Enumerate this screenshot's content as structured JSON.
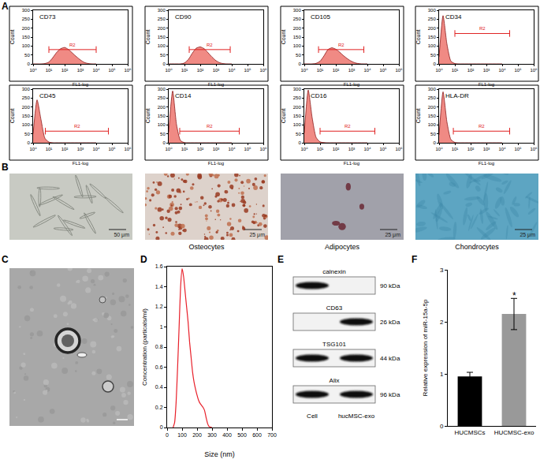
{
  "panel_labels": [
    "A",
    "B",
    "C",
    "D",
    "E",
    "F"
  ],
  "chart_data": [
    {
      "type": "area",
      "title": "CD73",
      "xlabel": "FL1-log",
      "ylabel": "Count",
      "log": "x",
      "color": "#f08a84",
      "x": [
        1,
        1.78,
        3.16,
        5.62,
        10,
        17.8,
        31.6,
        56.2,
        100,
        178,
        316,
        562,
        1000,
        1778,
        3162,
        5623,
        10000
      ],
      "values": [
        0,
        0,
        0,
        2,
        10,
        35,
        65,
        85,
        92,
        80,
        60,
        40,
        22,
        8,
        2,
        0,
        0
      ],
      "xlim": [
        1,
        1000000
      ],
      "xticks": [
        {
          "value": 1,
          "label": "10⁰"
        },
        {
          "value": 10,
          "label": "10¹"
        },
        {
          "value": 100,
          "label": "10²"
        },
        {
          "value": 1000,
          "label": "10³"
        },
        {
          "value": 10000,
          "label": "10⁴"
        },
        {
          "value": 100000,
          "label": "10⁵"
        },
        {
          "value": 1000000,
          "label": "10⁶"
        }
      ],
      "ylim": [
        0,
        300
      ],
      "yticks": [
        0,
        50,
        100,
        150,
        200,
        250,
        300
      ],
      "grid": false,
      "annotations": [
        {
          "text": "R2",
          "x": [
            10,
            10000
          ],
          "y": 80
        }
      ]
    },
    {
      "type": "area",
      "title": "CD90",
      "xlabel": "FL1-log",
      "ylabel": "Count",
      "log": "x",
      "color": "#f08a84",
      "x": [
        1,
        1.78,
        3.16,
        5.62,
        10,
        17.8,
        31.6,
        56.2,
        100,
        178,
        316,
        562,
        1000,
        1778,
        3162,
        5623,
        10000
      ],
      "values": [
        0,
        0,
        0,
        0,
        5,
        25,
        60,
        88,
        95,
        85,
        62,
        38,
        18,
        6,
        1,
        0,
        0
      ],
      "xlim": [
        1,
        1000000
      ],
      "xticks": [
        {
          "value": 1,
          "label": "10⁰"
        },
        {
          "value": 10,
          "label": "10¹"
        },
        {
          "value": 100,
          "label": "10²"
        },
        {
          "value": 1000,
          "label": "10³"
        },
        {
          "value": 10000,
          "label": "10⁴"
        },
        {
          "value": 100000,
          "label": "10⁵"
        },
        {
          "value": 1000000,
          "label": "10⁶"
        }
      ],
      "ylim": [
        0,
        300
      ],
      "yticks": [
        0,
        50,
        100,
        150,
        200,
        250,
        300
      ],
      "grid": false,
      "annotations": [
        {
          "text": "R2",
          "x": [
            20,
            8000
          ],
          "y": 80
        }
      ]
    },
    {
      "type": "area",
      "title": "CD105",
      "xlabel": "FL1-log",
      "ylabel": "Count",
      "log": "x",
      "color": "#f08a84",
      "x": [
        1,
        1.78,
        3.16,
        5.62,
        10,
        17.8,
        31.6,
        56.2,
        100,
        178,
        316,
        562,
        1000,
        1778,
        3162,
        5623,
        10000
      ],
      "values": [
        0,
        0,
        0,
        3,
        15,
        45,
        80,
        90,
        82,
        65,
        45,
        28,
        14,
        5,
        1,
        0,
        0
      ],
      "xlim": [
        1,
        1000000
      ],
      "xticks": [
        {
          "value": 1,
          "label": "10⁰"
        },
        {
          "value": 10,
          "label": "10¹"
        },
        {
          "value": 100,
          "label": "10²"
        },
        {
          "value": 1000,
          "label": "10³"
        },
        {
          "value": 10000,
          "label": "10⁴"
        },
        {
          "value": 100000,
          "label": "10⁵"
        },
        {
          "value": 1000000,
          "label": "10⁶"
        }
      ],
      "ylim": [
        0,
        300
      ],
      "yticks": [
        0,
        50,
        100,
        150,
        200,
        250,
        300
      ],
      "grid": false,
      "annotations": [
        {
          "text": "R2",
          "x": [
            8,
            6000
          ],
          "y": 80
        }
      ]
    },
    {
      "type": "area",
      "title": "CD34",
      "xlabel": "FL1-log",
      "ylabel": "Count",
      "log": "x",
      "color": "#f08a84",
      "x": [
        1,
        1.78,
        3.16,
        5.62,
        10,
        17.8,
        31.6,
        56.2,
        100,
        178,
        316,
        562,
        1000,
        1778,
        3162,
        5623,
        10000
      ],
      "values": [
        40,
        270,
        110,
        15,
        2,
        0,
        0,
        0,
        0,
        0,
        0,
        0,
        0,
        0,
        0,
        0,
        0
      ],
      "xlim": [
        1,
        1000000
      ],
      "xticks": [
        {
          "value": 1,
          "label": "10⁰"
        },
        {
          "value": 10,
          "label": "10¹"
        },
        {
          "value": 100,
          "label": "10²"
        },
        {
          "value": 1000,
          "label": "10³"
        },
        {
          "value": 10000,
          "label": "10⁴"
        },
        {
          "value": 100000,
          "label": "10⁵"
        },
        {
          "value": 1000000,
          "label": "10⁶"
        }
      ],
      "ylim": [
        0,
        300
      ],
      "yticks": [
        0,
        50,
        100,
        150,
        200,
        250,
        300
      ],
      "grid": false,
      "annotations": [
        {
          "text": "R2",
          "x": [
            10,
            30000
          ],
          "y": 170
        }
      ]
    },
    {
      "type": "area",
      "title": "CD45",
      "xlabel": "FL1-log",
      "ylabel": "Count",
      "log": "x",
      "color": "#f08a84",
      "x": [
        1,
        1.78,
        3.16,
        5.62,
        10,
        17.8,
        31.6,
        56.2,
        100,
        178,
        316,
        562,
        1000,
        1778,
        3162,
        5623,
        10000
      ],
      "values": [
        50,
        240,
        130,
        25,
        4,
        0,
        0,
        0,
        0,
        0,
        0,
        0,
        0,
        0,
        0,
        0,
        0
      ],
      "xlim": [
        1,
        1000000
      ],
      "xticks": [
        {
          "value": 1,
          "label": "10⁰"
        },
        {
          "value": 10,
          "label": "10¹"
        },
        {
          "value": 100,
          "label": "10²"
        },
        {
          "value": 1000,
          "label": "10³"
        },
        {
          "value": 10000,
          "label": "10⁴"
        },
        {
          "value": 100000,
          "label": "10⁵"
        },
        {
          "value": 1000000,
          "label": "10⁶"
        }
      ],
      "ylim": [
        0,
        300
      ],
      "yticks": [
        0,
        50,
        100,
        150,
        200,
        250,
        300
      ],
      "grid": false,
      "annotations": [
        {
          "text": "R2",
          "x": [
            6,
            60000
          ],
          "y": 65
        }
      ]
    },
    {
      "type": "area",
      "title": "CD14",
      "xlabel": "FL1-log",
      "ylabel": "Count",
      "log": "x",
      "color": "#f08a84",
      "x": [
        1,
        1.78,
        3.16,
        5.62,
        10,
        17.8,
        31.6,
        56.2,
        100,
        178,
        316,
        562,
        1000,
        1778,
        3162,
        5623,
        10000
      ],
      "values": [
        60,
        290,
        100,
        12,
        1,
        0,
        0,
        0,
        0,
        0,
        0,
        0,
        0,
        0,
        0,
        0,
        0
      ],
      "xlim": [
        1,
        1000000
      ],
      "xticks": [
        {
          "value": 1,
          "label": "10⁰"
        },
        {
          "value": 10,
          "label": "10¹"
        },
        {
          "value": 100,
          "label": "10²"
        },
        {
          "value": 1000,
          "label": "10³"
        },
        {
          "value": 10000,
          "label": "10⁴"
        },
        {
          "value": 100000,
          "label": "10⁵"
        },
        {
          "value": 1000000,
          "label": "10⁶"
        }
      ],
      "ylim": [
        0,
        300
      ],
      "yticks": [
        0,
        50,
        100,
        150,
        200,
        250,
        300
      ],
      "grid": false,
      "annotations": [
        {
          "text": "R2",
          "x": [
            5,
            30000
          ],
          "y": 65
        }
      ]
    },
    {
      "type": "area",
      "title": "CD16",
      "xlabel": "FL1-log",
      "ylabel": "Count",
      "log": "x",
      "color": "#f08a84",
      "x": [
        1,
        1.78,
        3.16,
        5.62,
        10,
        17.8,
        31.6,
        56.2,
        100,
        178,
        316,
        562,
        1000,
        1778,
        3162,
        5623,
        10000
      ],
      "values": [
        55,
        295,
        140,
        30,
        5,
        1,
        0,
        0,
        0,
        0,
        0,
        0,
        0,
        0,
        0,
        0,
        0
      ],
      "xlim": [
        1,
        1000000
      ],
      "xticks": [
        {
          "value": 1,
          "label": "10⁰"
        },
        {
          "value": 10,
          "label": "10¹"
        },
        {
          "value": 100,
          "label": "10²"
        },
        {
          "value": 1000,
          "label": "10³"
        },
        {
          "value": 10000,
          "label": "10⁴"
        },
        {
          "value": 100000,
          "label": "10⁵"
        },
        {
          "value": 1000000,
          "label": "10⁶"
        }
      ],
      "ylim": [
        0,
        300
      ],
      "yticks": [
        0,
        50,
        100,
        150,
        200,
        250,
        300
      ],
      "grid": false,
      "annotations": [
        {
          "text": "R2",
          "x": [
            10,
            30000
          ],
          "y": 65
        }
      ]
    },
    {
      "type": "area",
      "title": "HLA-DR",
      "xlabel": "FL1-log",
      "ylabel": "Count",
      "log": "x",
      "color": "#f08a84",
      "x": [
        1,
        1.78,
        3.16,
        5.62,
        10,
        17.8,
        31.6,
        56.2,
        100,
        178,
        316,
        562,
        1000,
        1778,
        3162,
        5623,
        10000
      ],
      "values": [
        45,
        285,
        115,
        18,
        2,
        0,
        0,
        0,
        0,
        0,
        0,
        0,
        0,
        0,
        0,
        0,
        0
      ],
      "xlim": [
        1,
        1000000
      ],
      "xticks": [
        {
          "value": 1,
          "label": "10⁰"
        },
        {
          "value": 10,
          "label": "10¹"
        },
        {
          "value": 100,
          "label": "10²"
        },
        {
          "value": 1000,
          "label": "10³"
        },
        {
          "value": 10000,
          "label": "10⁴"
        },
        {
          "value": 100000,
          "label": "10⁵"
        },
        {
          "value": 1000000,
          "label": "10⁶"
        }
      ],
      "ylim": [
        0,
        300
      ],
      "yticks": [
        0,
        50,
        100,
        150,
        200,
        250,
        300
      ],
      "grid": false,
      "annotations": [
        {
          "text": "R2",
          "x": [
            8,
            30000
          ],
          "y": 65
        }
      ]
    },
    {
      "type": "line",
      "xlabel": "Size (nm)",
      "ylabel": "Concentration (particals/ml)",
      "color": "#e8202a",
      "x": [
        40,
        50,
        60,
        70,
        80,
        90,
        100,
        110,
        120,
        130,
        140,
        150,
        160,
        170,
        180,
        190,
        200,
        210,
        220,
        230,
        240,
        250,
        260,
        270,
        280,
        300
      ],
      "values": [
        0,
        0.05,
        0.25,
        0.6,
        1.0,
        1.4,
        1.58,
        1.5,
        1.35,
        1.2,
        1.05,
        0.85,
        0.7,
        0.55,
        0.45,
        0.38,
        0.32,
        0.27,
        0.24,
        0.22,
        0.2,
        0.17,
        0.1,
        0.04,
        0.01,
        0
      ],
      "xlim": [
        0,
        700
      ],
      "xticks": [
        0,
        100,
        200,
        300,
        400,
        500,
        600,
        700
      ],
      "ylim": [
        0,
        1.6
      ],
      "yticks": [
        0,
        0.2,
        0.4,
        0.6,
        0.8,
        1,
        1.2,
        1.4,
        1.6
      ],
      "grid": false
    },
    {
      "type": "bar",
      "ylabel": "Relative expression of miR-15a-5p",
      "categories": [
        "HUCMSCs",
        "HUCMSC-exo"
      ],
      "values": [
        0.95,
        2.15
      ],
      "errors": [
        0.08,
        0.3
      ],
      "colors": [
        "#000000",
        "#999999"
      ],
      "ylim": [
        0,
        3
      ],
      "yticks": [
        0,
        1,
        2,
        3
      ],
      "grid": false,
      "annotations": [
        {
          "category": "HUCMSC-exo",
          "text": "*",
          "y": 2.5
        }
      ]
    }
  ],
  "micrographs": [
    {
      "scale_bar": "50 μm"
    },
    {
      "caption": "Osteocytes",
      "scale_bar": "25 μm"
    },
    {
      "caption": "Adipocytes",
      "scale_bar": "25 μm"
    },
    {
      "caption": "Chondrocytes",
      "scale_bar": "25 μm"
    }
  ],
  "western_blot": {
    "lanes": [
      "Cell",
      "hucMSC-exo"
    ],
    "rows": [
      {
        "protein": "calnexin",
        "size": "90 kDa",
        "bands": [
          true,
          false
        ]
      },
      {
        "protein": "CD63",
        "size": "26 kDa",
        "bands": [
          false,
          true
        ]
      },
      {
        "protein": "TSG101",
        "size": "44 kDa",
        "bands": [
          true,
          true
        ]
      },
      {
        "protein": "Alix",
        "size": "96 kDa",
        "bands": [
          true,
          true
        ]
      }
    ]
  }
}
